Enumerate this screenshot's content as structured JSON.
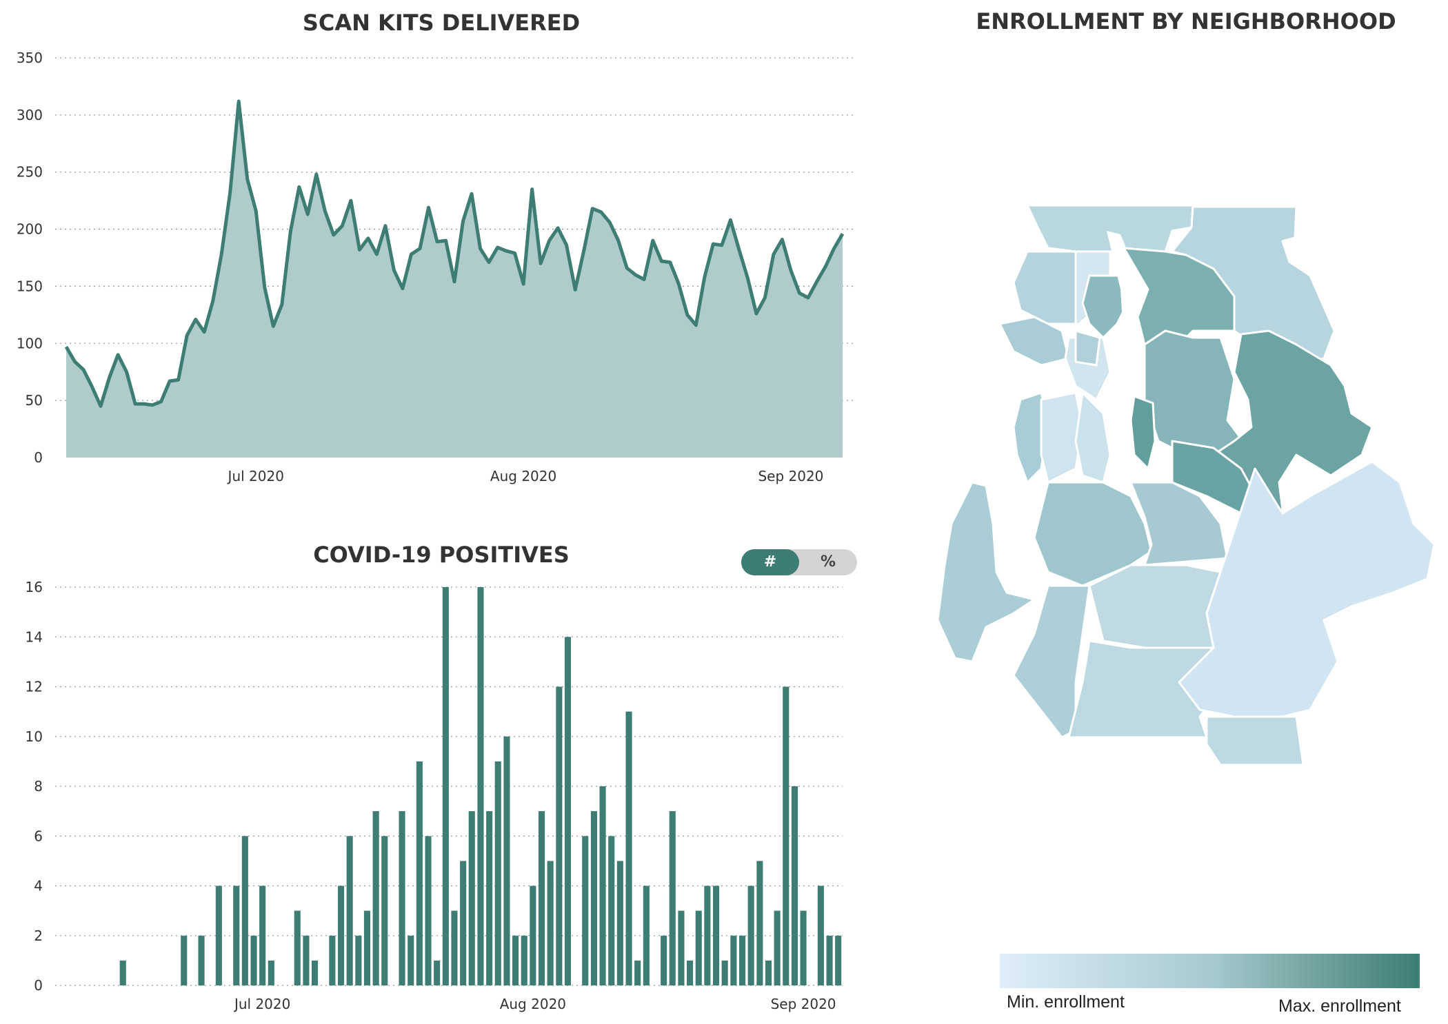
{
  "scan_title": "SCAN KITS DELIVERED",
  "covid_title": "COVID-19 POSITIVES",
  "map_title": "ENROLLMENT BY NEIGHBORHOOD",
  "toggle": {
    "count_label": "#",
    "percent_label": "%",
    "selected": "#"
  },
  "colors": {
    "line": "#3d7d74",
    "area": "#b0cbcb",
    "bar": "#3d7d74",
    "legend_min": "#deeefa",
    "legend_max": "#3d7d74"
  },
  "legend": {
    "min_label": "Min. enrollment",
    "max_label": "Max. enrollment"
  },
  "chart_data": [
    {
      "type": "area",
      "title": "SCAN KITS DELIVERED",
      "xlabel": "",
      "ylabel": "",
      "x_start": "2020-06-09",
      "x_ticks": [
        {
          "date": "2020-07-01",
          "label": "Jul 2020"
        },
        {
          "date": "2020-08-01",
          "label": "Aug 2020"
        },
        {
          "date": "2020-09-01",
          "label": "Sep 2020"
        }
      ],
      "ylim": [
        0,
        350
      ],
      "y_ticks": [
        0,
        50,
        100,
        150,
        200,
        250,
        300,
        350
      ],
      "grid": true,
      "values": [
        97,
        84,
        77,
        62,
        45,
        70,
        90,
        75,
        47,
        47,
        46,
        49,
        67,
        68,
        107,
        121,
        110,
        137,
        178,
        232,
        312,
        244,
        216,
        149,
        115,
        134,
        198,
        237,
        213,
        248,
        216,
        195,
        203,
        225,
        182,
        192,
        178,
        203,
        164,
        148,
        178,
        183,
        219,
        189,
        190,
        154,
        207,
        231,
        183,
        171,
        184,
        181,
        179,
        152,
        235,
        170,
        190,
        201,
        186,
        147,
        181,
        218,
        215,
        206,
        190,
        166,
        160,
        156,
        190,
        172,
        171,
        152,
        125,
        116,
        158,
        187,
        186,
        208,
        182,
        157,
        126,
        140,
        178,
        191,
        164,
        144,
        140,
        154,
        167,
        183,
        196
      ]
    },
    {
      "type": "bar",
      "title": "COVID-19 POSITIVES",
      "xlabel": "",
      "ylabel": "",
      "x_start": "2020-06-09",
      "x_ticks": [
        {
          "date": "2020-07-01",
          "label": "Jul 2020"
        },
        {
          "date": "2020-08-01",
          "label": "Aug 2020"
        },
        {
          "date": "2020-09-01",
          "label": "Sep 2020"
        }
      ],
      "ylim": [
        0,
        16
      ],
      "y_ticks": [
        0,
        2,
        4,
        6,
        8,
        10,
        12,
        14,
        16
      ],
      "grid": true,
      "values": [
        0,
        0,
        0,
        0,
        0,
        0,
        1,
        0,
        0,
        0,
        0,
        0,
        0,
        2,
        0,
        2,
        0,
        4,
        0,
        4,
        6,
        2,
        4,
        1,
        0,
        0,
        3,
        2,
        1,
        0,
        2,
        4,
        6,
        2,
        3,
        7,
        6,
        0,
        7,
        2,
        9,
        6,
        1,
        16,
        3,
        5,
        7,
        16,
        7,
        9,
        10,
        2,
        2,
        4,
        7,
        5,
        12,
        14,
        0,
        6,
        7,
        8,
        6,
        5,
        11,
        1,
        4,
        0,
        2,
        7,
        3,
        1,
        3,
        4,
        4,
        1,
        2,
        2,
        4,
        5,
        1,
        3,
        12,
        8,
        3,
        0,
        4,
        2,
        2
      ]
    }
  ]
}
